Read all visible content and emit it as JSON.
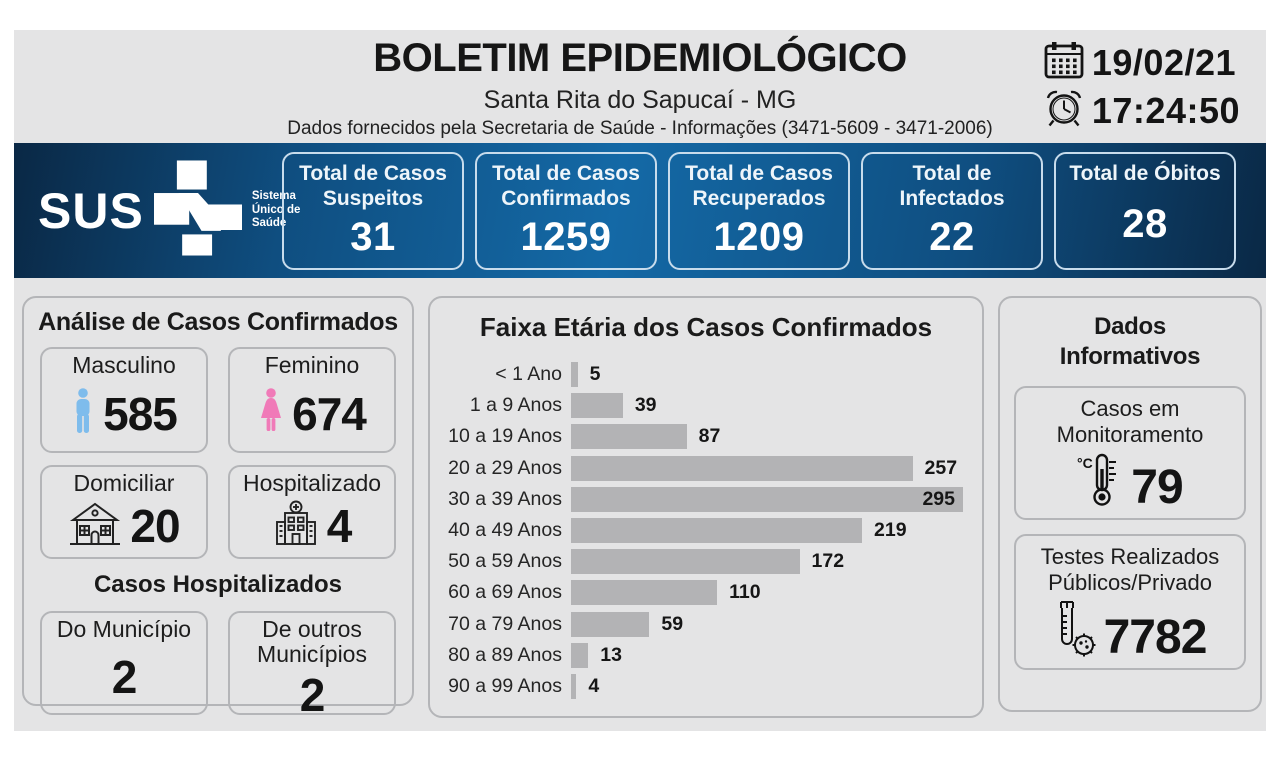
{
  "header": {
    "title": "BOLETIM EPIDEMIOLÓGICO",
    "subtitle": "Santa Rita do Sapucaí - MG",
    "info_line": "Dados fornecidos pela Secretaria de Saúde - Informações (3471-5609 - 3471-2006)",
    "date": "19/02/21",
    "time": "17:24:50"
  },
  "sus_bar": {
    "logo_text": "SUS",
    "logo_caption": "Sistema Único de Saúde",
    "cards": [
      {
        "label": "Total de Casos Suspeitos",
        "value": "31"
      },
      {
        "label": "Total de Casos Confirmados",
        "value": "1259"
      },
      {
        "label": "Total de Casos Recuperados",
        "value": "1209"
      },
      {
        "label": "Total de Infectados",
        "value": "22"
      },
      {
        "label": "Total de Óbitos",
        "value": "28"
      }
    ]
  },
  "analysis_panel": {
    "title": "Análise de Casos Confirmados",
    "cards": [
      {
        "label": "Masculino",
        "value": "585",
        "icon": "male-icon"
      },
      {
        "label": "Feminino",
        "value": "674",
        "icon": "female-icon"
      },
      {
        "label": "Domiciliar",
        "value": "20",
        "icon": "house-icon"
      },
      {
        "label": "Hospitalizado",
        "value": "4",
        "icon": "hospital-icon"
      }
    ],
    "subtitle": "Casos Hospitalizados",
    "sub_cards": [
      {
        "label": "Do Município",
        "value": "2"
      },
      {
        "label": "De outros Municípios",
        "value": "2"
      }
    ]
  },
  "chart_data": {
    "type": "bar",
    "orientation": "horizontal",
    "title": "Faixa Etária dos Casos Confirmados",
    "categories": [
      "< 1 Ano",
      "1 a 9 Anos",
      "10 a 19 Anos",
      "20 a 29 Anos",
      "30 a 39 Anos",
      "40 a 49 Anos",
      "50 a 59 Anos",
      "60 a 69 Anos",
      "70 a 79 Anos",
      "80 a 89 Anos",
      "90 a 99 Anos"
    ],
    "values": [
      5,
      39,
      87,
      257,
      295,
      219,
      172,
      110,
      59,
      13,
      4
    ],
    "xlim": [
      0,
      295
    ],
    "bar_color": "#b3b3b5",
    "value_labels": "outside, inside-right for max bar",
    "grid": false,
    "legend": false
  },
  "info_panel": {
    "title": "Dados Informativos",
    "cards": [
      {
        "label": "Casos em Monitoramento",
        "value": "79",
        "icon": "thermometer-icon"
      },
      {
        "label": "Testes Realizados Públicos/Privado",
        "value": "7782",
        "icon": "testtube-icon"
      }
    ]
  },
  "colors": {
    "sheet_background": "#e4e4e5",
    "band_blue_center": "#1469a6",
    "band_blue_edge": "#0a2845",
    "chart_bar": "#b3b3b5",
    "male_icon": "#7ebcec",
    "female_icon": "#f07ab8",
    "panel_border": "#b4b5b8"
  }
}
